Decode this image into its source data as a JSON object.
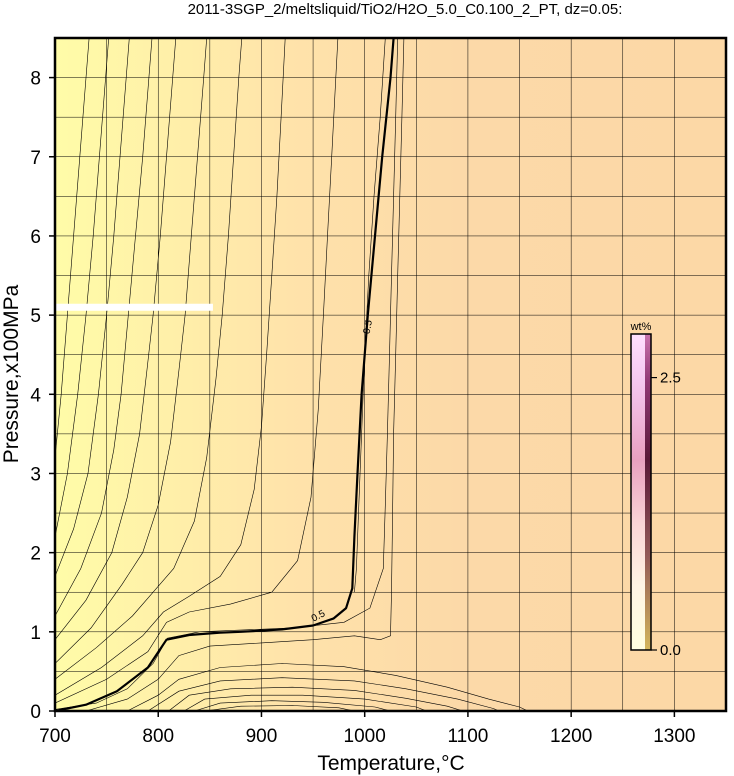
{
  "chart_data": {
    "type": "contour",
    "title": "2011-3SGP_2/meltsliquid/TiO2/H2O_5.0_C0.100_2_PT, dz=0.05:",
    "xlabel": "Temperature,°C",
    "ylabel": "Pressure,x100MPa",
    "xlim": [
      700,
      1350
    ],
    "ylim": [
      0,
      8.5
    ],
    "xticks": [
      "700",
      "800",
      "900",
      "1000",
      "1100",
      "1200",
      "1300"
    ],
    "yticks": [
      "0",
      "1",
      "2",
      "3",
      "4",
      "5",
      "6",
      "7",
      "8"
    ],
    "grid": true,
    "highlight_contour": {
      "level_label": "0.5",
      "points": [
        [
          700,
          0.0
        ],
        [
          730,
          0.08
        ],
        [
          760,
          0.25
        ],
        [
          790,
          0.55
        ],
        [
          808,
          0.9
        ],
        [
          830,
          0.96
        ],
        [
          860,
          0.99
        ],
        [
          880,
          1.0
        ],
        [
          920,
          1.03
        ],
        [
          950,
          1.08
        ],
        [
          970,
          1.17
        ],
        [
          982,
          1.3
        ],
        [
          988,
          1.55
        ],
        [
          990,
          2.2
        ],
        [
          993,
          3.0
        ],
        [
          997,
          4.0
        ],
        [
          1003,
          5.0
        ],
        [
          1010,
          6.0
        ],
        [
          1017,
          7.0
        ],
        [
          1025,
          8.0
        ],
        [
          1028,
          8.5
        ]
      ]
    },
    "contours": [
      {
        "points": [
          [
            700,
            3.2
          ],
          [
            706,
            4.0
          ],
          [
            712,
            5.0
          ],
          [
            718,
            6.0
          ],
          [
            724,
            7.0
          ],
          [
            730,
            8.0
          ],
          [
            733,
            8.5
          ]
        ]
      },
      {
        "points": [
          [
            700,
            2.2
          ],
          [
            712,
            3.0
          ],
          [
            722,
            4.0
          ],
          [
            730,
            5.0
          ],
          [
            737,
            6.0
          ],
          [
            743,
            7.0
          ],
          [
            749,
            8.0
          ],
          [
            752,
            8.5
          ]
        ]
      },
      {
        "points": [
          [
            700,
            1.7
          ],
          [
            718,
            2.3
          ],
          [
            732,
            3.0
          ],
          [
            742,
            4.0
          ],
          [
            750,
            5.0
          ],
          [
            757,
            6.0
          ],
          [
            763,
            7.0
          ],
          [
            769,
            8.0
          ],
          [
            772,
            8.5
          ]
        ]
      },
      {
        "points": [
          [
            700,
            1.2
          ],
          [
            725,
            1.8
          ],
          [
            745,
            2.5
          ],
          [
            757,
            3.3
          ],
          [
            764,
            4.0
          ],
          [
            771,
            5.0
          ],
          [
            778,
            6.0
          ],
          [
            785,
            7.0
          ],
          [
            791,
            8.0
          ],
          [
            794,
            8.5
          ]
        ]
      },
      {
        "points": [
          [
            700,
            0.9
          ],
          [
            730,
            1.4
          ],
          [
            755,
            2.0
          ],
          [
            770,
            2.7
          ],
          [
            782,
            3.5
          ],
          [
            789,
            4.3
          ],
          [
            795,
            5.0
          ],
          [
            802,
            6.0
          ],
          [
            808,
            7.0
          ],
          [
            814,
            8.0
          ],
          [
            817,
            8.5
          ]
        ]
      },
      {
        "points": [
          [
            700,
            0.6
          ],
          [
            735,
            1.05
          ],
          [
            765,
            1.6
          ],
          [
            785,
            2.0
          ],
          [
            800,
            2.6
          ],
          [
            812,
            3.4
          ],
          [
            820,
            4.3
          ],
          [
            826,
            5.0
          ],
          [
            832,
            6.0
          ],
          [
            838,
            7.0
          ],
          [
            844,
            8.0
          ],
          [
            847,
            8.5
          ]
        ]
      },
      {
        "points": [
          [
            700,
            0.4
          ],
          [
            740,
            0.8
          ],
          [
            775,
            1.2
          ],
          [
            795,
            1.5
          ],
          [
            815,
            1.8
          ],
          [
            835,
            2.4
          ],
          [
            847,
            3.2
          ],
          [
            856,
            4.2
          ],
          [
            862,
            5.0
          ],
          [
            868,
            6.0
          ],
          [
            873,
            7.0
          ],
          [
            878,
            8.0
          ],
          [
            881,
            8.5
          ]
        ]
      },
      {
        "points": [
          [
            700,
            0.2
          ],
          [
            745,
            0.55
          ],
          [
            785,
            0.95
          ],
          [
            805,
            1.25
          ],
          [
            830,
            1.45
          ],
          [
            860,
            1.7
          ],
          [
            880,
            2.1
          ],
          [
            893,
            2.8
          ],
          [
            900,
            3.6
          ],
          [
            905,
            4.5
          ],
          [
            910,
            5.5
          ],
          [
            915,
            6.5
          ],
          [
            919,
            7.5
          ],
          [
            923,
            8.5
          ]
        ]
      },
      {
        "points": [
          [
            700,
            0.1
          ],
          [
            750,
            0.4
          ],
          [
            790,
            0.75
          ],
          [
            808,
            1.12
          ],
          [
            830,
            1.25
          ],
          [
            870,
            1.35
          ],
          [
            910,
            1.5
          ],
          [
            935,
            1.9
          ],
          [
            948,
            2.7
          ],
          [
            955,
            3.8
          ],
          [
            960,
            5.0
          ],
          [
            964,
            6.0
          ],
          [
            968,
            7.0
          ],
          [
            972,
            8.0
          ],
          [
            974,
            8.5
          ]
        ]
      },
      {
        "points": [
          [
            990,
            1.5
          ],
          [
            992,
            1.8
          ],
          [
            994,
            2.5
          ],
          [
            997,
            3.5
          ],
          [
            1000,
            4.5
          ],
          [
            1004,
            5.5
          ],
          [
            1009,
            6.5
          ],
          [
            1015,
            7.5
          ],
          [
            1020,
            8.5
          ]
        ]
      },
      {
        "points": [
          [
            700,
            0.02
          ],
          [
            740,
            0.1
          ],
          [
            770,
            0.28
          ],
          [
            795,
            0.6
          ],
          [
            809,
            0.92
          ],
          [
            840,
            1.0
          ],
          [
            930,
            1.05
          ],
          [
            980,
            1.12
          ],
          [
            1005,
            1.3
          ],
          [
            1018,
            1.8
          ],
          [
            1020,
            2.6
          ],
          [
            1022,
            3.5
          ],
          [
            1024,
            4.5
          ],
          [
            1026,
            5.5
          ],
          [
            1028,
            6.5
          ],
          [
            1030,
            7.5
          ],
          [
            1032,
            8.5
          ]
        ]
      },
      {
        "points": [
          [
            730,
            0.0
          ],
          [
            770,
            0.15
          ],
          [
            800,
            0.4
          ],
          [
            820,
            0.7
          ],
          [
            850,
            0.82
          ],
          [
            900,
            0.86
          ],
          [
            950,
            0.9
          ],
          [
            990,
            0.95
          ],
          [
            1015,
            0.9
          ],
          [
            1025,
            0.95
          ],
          [
            1026,
            1.5
          ],
          [
            1027,
            2.5
          ],
          [
            1028,
            3.5
          ],
          [
            1030,
            4.5
          ],
          [
            1032,
            5.5
          ],
          [
            1034,
            6.5
          ],
          [
            1036,
            7.5
          ],
          [
            1038,
            8.5
          ]
        ]
      },
      {
        "points": [
          [
            770,
            0.0
          ],
          [
            800,
            0.2
          ],
          [
            820,
            0.4
          ],
          [
            860,
            0.55
          ],
          [
            920,
            0.6
          ],
          [
            980,
            0.56
          ],
          [
            1030,
            0.45
          ],
          [
            1080,
            0.3
          ],
          [
            1120,
            0.15
          ],
          [
            1150,
            0.05
          ],
          [
            1158,
            0.0
          ]
        ]
      },
      {
        "points": [
          [
            790,
            0.0
          ],
          [
            820,
            0.25
          ],
          [
            860,
            0.38
          ],
          [
            920,
            0.42
          ],
          [
            990,
            0.38
          ],
          [
            1040,
            0.28
          ],
          [
            1090,
            0.15
          ],
          [
            1125,
            0.03
          ],
          [
            1130,
            0.0
          ]
        ]
      },
      {
        "points": [
          [
            810,
            0.0
          ],
          [
            830,
            0.2
          ],
          [
            870,
            0.28
          ],
          [
            930,
            0.3
          ],
          [
            990,
            0.26
          ],
          [
            1040,
            0.16
          ],
          [
            1080,
            0.06
          ],
          [
            1095,
            0.0
          ]
        ]
      },
      {
        "points": [
          [
            825,
            0.0
          ],
          [
            845,
            0.15
          ],
          [
            890,
            0.2
          ],
          [
            940,
            0.2
          ],
          [
            1000,
            0.15
          ],
          [
            1050,
            0.05
          ],
          [
            1060,
            0.0
          ]
        ]
      },
      {
        "points": [
          [
            835,
            0.0
          ],
          [
            860,
            0.1
          ],
          [
            910,
            0.13
          ],
          [
            960,
            0.11
          ],
          [
            1010,
            0.05
          ],
          [
            1025,
            0.0
          ]
        ]
      },
      {
        "points": [
          [
            845,
            0.0
          ],
          [
            880,
            0.06
          ],
          [
            930,
            0.07
          ],
          [
            975,
            0.04
          ],
          [
            990,
            0.0
          ]
        ]
      }
    ],
    "annotations": [
      {
        "text": "0.5",
        "x": 1003,
        "y": 4.85,
        "rotation": -80
      },
      {
        "text": "0.5",
        "x": 955,
        "y": 1.2,
        "rotation": -28
      }
    ],
    "white_band": {
      "x": [
        700,
        853
      ],
      "y": 5.1
    },
    "colorbar": {
      "unit": "wt%",
      "min": 0.0,
      "max": 2.9,
      "ticks": [
        {
          "value": 2.5,
          "label": "2.5"
        },
        {
          "value": 0.0,
          "label": "0.0"
        }
      ],
      "colors": [
        "#FFFFE0",
        "#FFF4E4",
        "#F9D4D6",
        "#E8A0C0",
        "#C060A0",
        "#802060",
        "#400020",
        "#CCAA44"
      ]
    },
    "background_colors": [
      "#FFFCA8",
      "#FFE0A8",
      "#FCD9A8"
    ]
  }
}
